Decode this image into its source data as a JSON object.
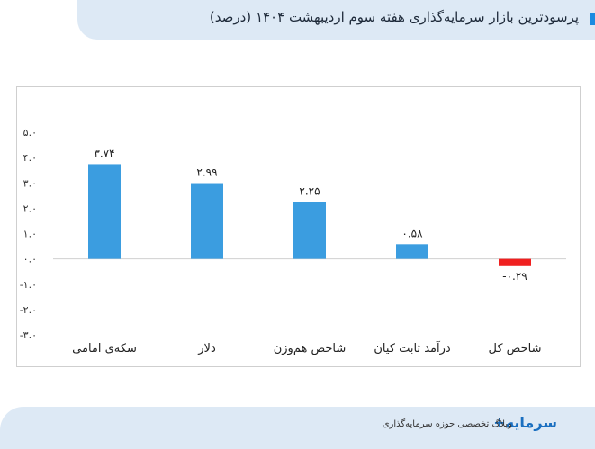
{
  "header": {
    "title": "پرسودترین بازار سرمایه‌گذاری هفته سوم اردیبهشت ۱۴۰۴ (درصد)"
  },
  "footer": {
    "tagline": "وبلاگ تخصصی حوزه سرمایه‌گذاری",
    "logo_text": "سرمایه+"
  },
  "colors": {
    "positive": "#3b9de0",
    "negative": "#f02020"
  },
  "chart_data": {
    "type": "bar",
    "title": "پرسودترین بازار سرمایه‌گذاری هفته سوم اردیبهشت ۱۴۰۴ (درصد)",
    "categories": [
      "سکه‌ی امامی",
      "دلار",
      "شاخص هم‌وزن",
      "درآمد ثابت کیان",
      "شاخص کل"
    ],
    "values": [
      3.74,
      2.99,
      2.25,
      0.58,
      -0.29
    ],
    "value_labels": [
      "۳.۷۴",
      "۲.۹۹",
      "۲.۲۵",
      "۰.۵۸",
      "-۰.۲۹"
    ],
    "ylim": [
      -3,
      5
    ],
    "y_ticks": [
      5,
      4,
      3,
      2,
      1,
      0,
      -1,
      -2,
      -3
    ],
    "y_tick_labels": [
      "۵.۰",
      "۴.۰",
      "۳.۰",
      "۲.۰",
      "۱.۰",
      "۰.۰",
      "-۱.۰",
      "-۲.۰",
      "-۳.۰"
    ],
    "grid": false,
    "legend": "none"
  }
}
